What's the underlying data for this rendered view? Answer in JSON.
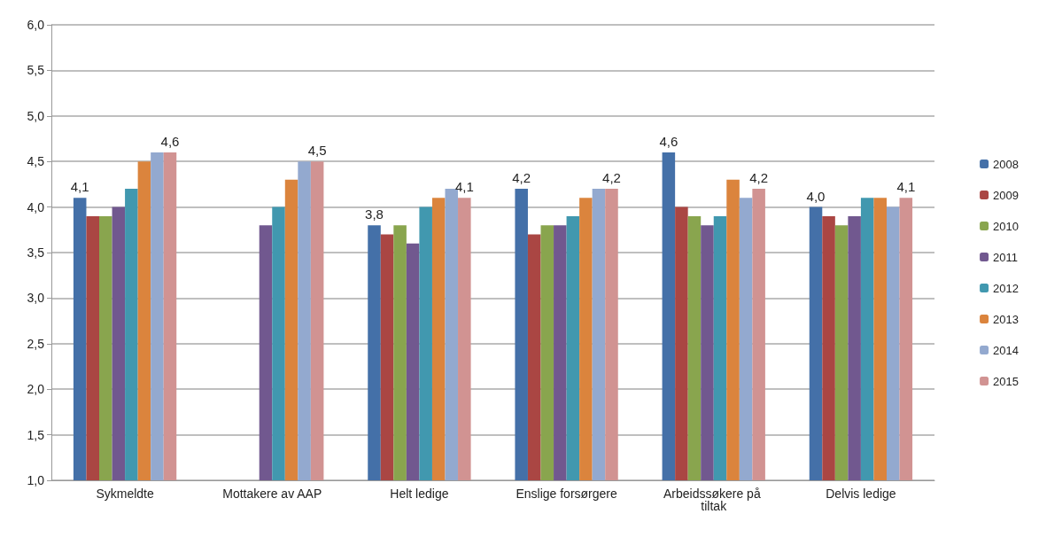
{
  "chart_data": {
    "type": "bar",
    "categories": [
      "Sykmeldte",
      "Mottakere av AAP",
      "Helt ledige",
      "Enslige forsørgere",
      "Arbeidssøkere på tiltak",
      "Delvis ledige"
    ],
    "series": [
      {
        "name": "2008",
        "color": "#4470a8",
        "values": [
          4.1,
          null,
          3.8,
          4.2,
          4.6,
          4.0
        ],
        "value_labels": [
          "4,1",
          null,
          "3,8",
          "4,2",
          "4,6",
          "4,0"
        ]
      },
      {
        "name": "2009",
        "color": "#aa4643",
        "values": [
          3.9,
          null,
          3.7,
          3.7,
          4.0,
          3.9
        ]
      },
      {
        "name": "2010",
        "color": "#89a54e",
        "values": [
          3.9,
          null,
          3.8,
          3.8,
          3.9,
          3.8
        ]
      },
      {
        "name": "2011",
        "color": "#71588f",
        "values": [
          4.0,
          3.8,
          3.6,
          3.8,
          3.8,
          3.9
        ]
      },
      {
        "name": "2012",
        "color": "#4198af",
        "values": [
          4.2,
          4.0,
          4.0,
          3.9,
          3.9,
          4.1
        ]
      },
      {
        "name": "2013",
        "color": "#db843d",
        "values": [
          4.5,
          4.3,
          4.1,
          4.1,
          4.3,
          4.1
        ]
      },
      {
        "name": "2014",
        "color": "#93a9cf",
        "values": [
          4.6,
          4.5,
          4.2,
          4.2,
          4.1,
          4.0
        ]
      },
      {
        "name": "2015",
        "color": "#d19392",
        "values": [
          4.6,
          4.5,
          4.1,
          4.2,
          4.2,
          4.1
        ],
        "value_labels": [
          "4,6",
          "4,5",
          "4,1",
          "4,2",
          "4,2",
          "4,1"
        ]
      }
    ],
    "ylim": [
      1,
      6
    ],
    "yticks": [
      {
        "value": 1,
        "label": "1,0"
      },
      {
        "value": 1.5,
        "label": "1,5"
      },
      {
        "value": 2,
        "label": "2,0"
      },
      {
        "value": 2.5,
        "label": "2,5"
      },
      {
        "value": 3,
        "label": "3,0"
      },
      {
        "value": 3.5,
        "label": "3,5"
      },
      {
        "value": 4,
        "label": "4,0"
      },
      {
        "value": 4.5,
        "label": "4,5"
      },
      {
        "value": 5,
        "label": "5,0"
      },
      {
        "value": 5.5,
        "label": "5,5"
      },
      {
        "value": 6,
        "label": "6,0"
      }
    ],
    "grid": "y",
    "legend": "right"
  }
}
